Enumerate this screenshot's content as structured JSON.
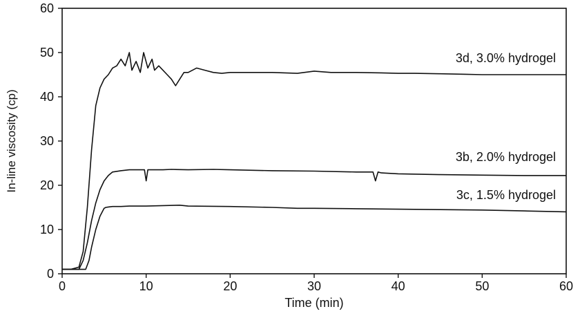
{
  "chart_data": {
    "type": "line",
    "title": "",
    "xlabel": "Time (min)",
    "ylabel": "In-line viscosity (cp)",
    "xlim": [
      0,
      60
    ],
    "ylim": [
      0,
      60
    ],
    "x_ticks": [
      0,
      10,
      20,
      30,
      40,
      50,
      60
    ],
    "y_ticks": [
      0,
      10,
      20,
      30,
      40,
      50,
      60
    ],
    "grid": false,
    "legend": "none",
    "line_color": "#111111",
    "series": [
      {
        "name": "3d, 3.0% hydrogel",
        "x": [
          0,
          1,
          2,
          2.5,
          3,
          3.5,
          4,
          4.5,
          5,
          5.5,
          6,
          6.5,
          7,
          7.5,
          8,
          8.3,
          8.8,
          9.3,
          9.7,
          10.2,
          10.7,
          11,
          11.5,
          12,
          12.5,
          13,
          13.5,
          14,
          14.5,
          15,
          16,
          17,
          18,
          19,
          20,
          22,
          25,
          28,
          30,
          32,
          34,
          35,
          38,
          40,
          42,
          45,
          48,
          50,
          55,
          60
        ],
        "y": [
          1,
          1,
          1.5,
          5,
          15,
          28,
          38,
          42,
          44,
          45,
          46.5,
          47,
          48.5,
          47,
          50,
          46,
          48,
          45.5,
          50,
          46.5,
          48.5,
          46,
          47,
          46,
          45,
          44,
          42.5,
          44,
          45.5,
          45.5,
          46.5,
          46,
          45.5,
          45.3,
          45.5,
          45.5,
          45.5,
          45.3,
          45.8,
          45.5,
          45.5,
          45.5,
          45.4,
          45.3,
          45.3,
          45.2,
          45.1,
          45,
          45,
          45
        ]
      },
      {
        "name": "3b, 2.0% hydrogel",
        "x": [
          0,
          2,
          2.5,
          3,
          3.5,
          4,
          4.5,
          5,
          5.5,
          6,
          7,
          8,
          9,
          9.8,
          10,
          10.2,
          11,
          12,
          13,
          15,
          18,
          20,
          25,
          30,
          35,
          37,
          37.3,
          37.6,
          38,
          40,
          45,
          50,
          55,
          60
        ],
        "y": [
          1,
          1,
          3,
          7,
          12,
          16,
          19,
          21,
          22.2,
          23,
          23.3,
          23.5,
          23.5,
          23.5,
          21,
          23.5,
          23.5,
          23.5,
          23.6,
          23.5,
          23.6,
          23.5,
          23.3,
          23.2,
          23,
          23,
          21,
          23,
          22.8,
          22.6,
          22.4,
          22.3,
          22.2,
          22.2
        ]
      },
      {
        "name": "3c, 1.5% hydrogel",
        "x": [
          0,
          2.8,
          3.2,
          3.5,
          4,
          4.5,
          5,
          5.2,
          5.5,
          6,
          7,
          8,
          10,
          12,
          14,
          15,
          20,
          25,
          28,
          30,
          35,
          40,
          45,
          50,
          55,
          60
        ],
        "y": [
          1,
          1,
          3,
          6,
          10,
          13,
          14.8,
          15,
          15.1,
          15.2,
          15.2,
          15.3,
          15.3,
          15.4,
          15.5,
          15.3,
          15.2,
          15,
          14.8,
          14.8,
          14.7,
          14.6,
          14.5,
          14.4,
          14.2,
          14
        ]
      }
    ]
  }
}
